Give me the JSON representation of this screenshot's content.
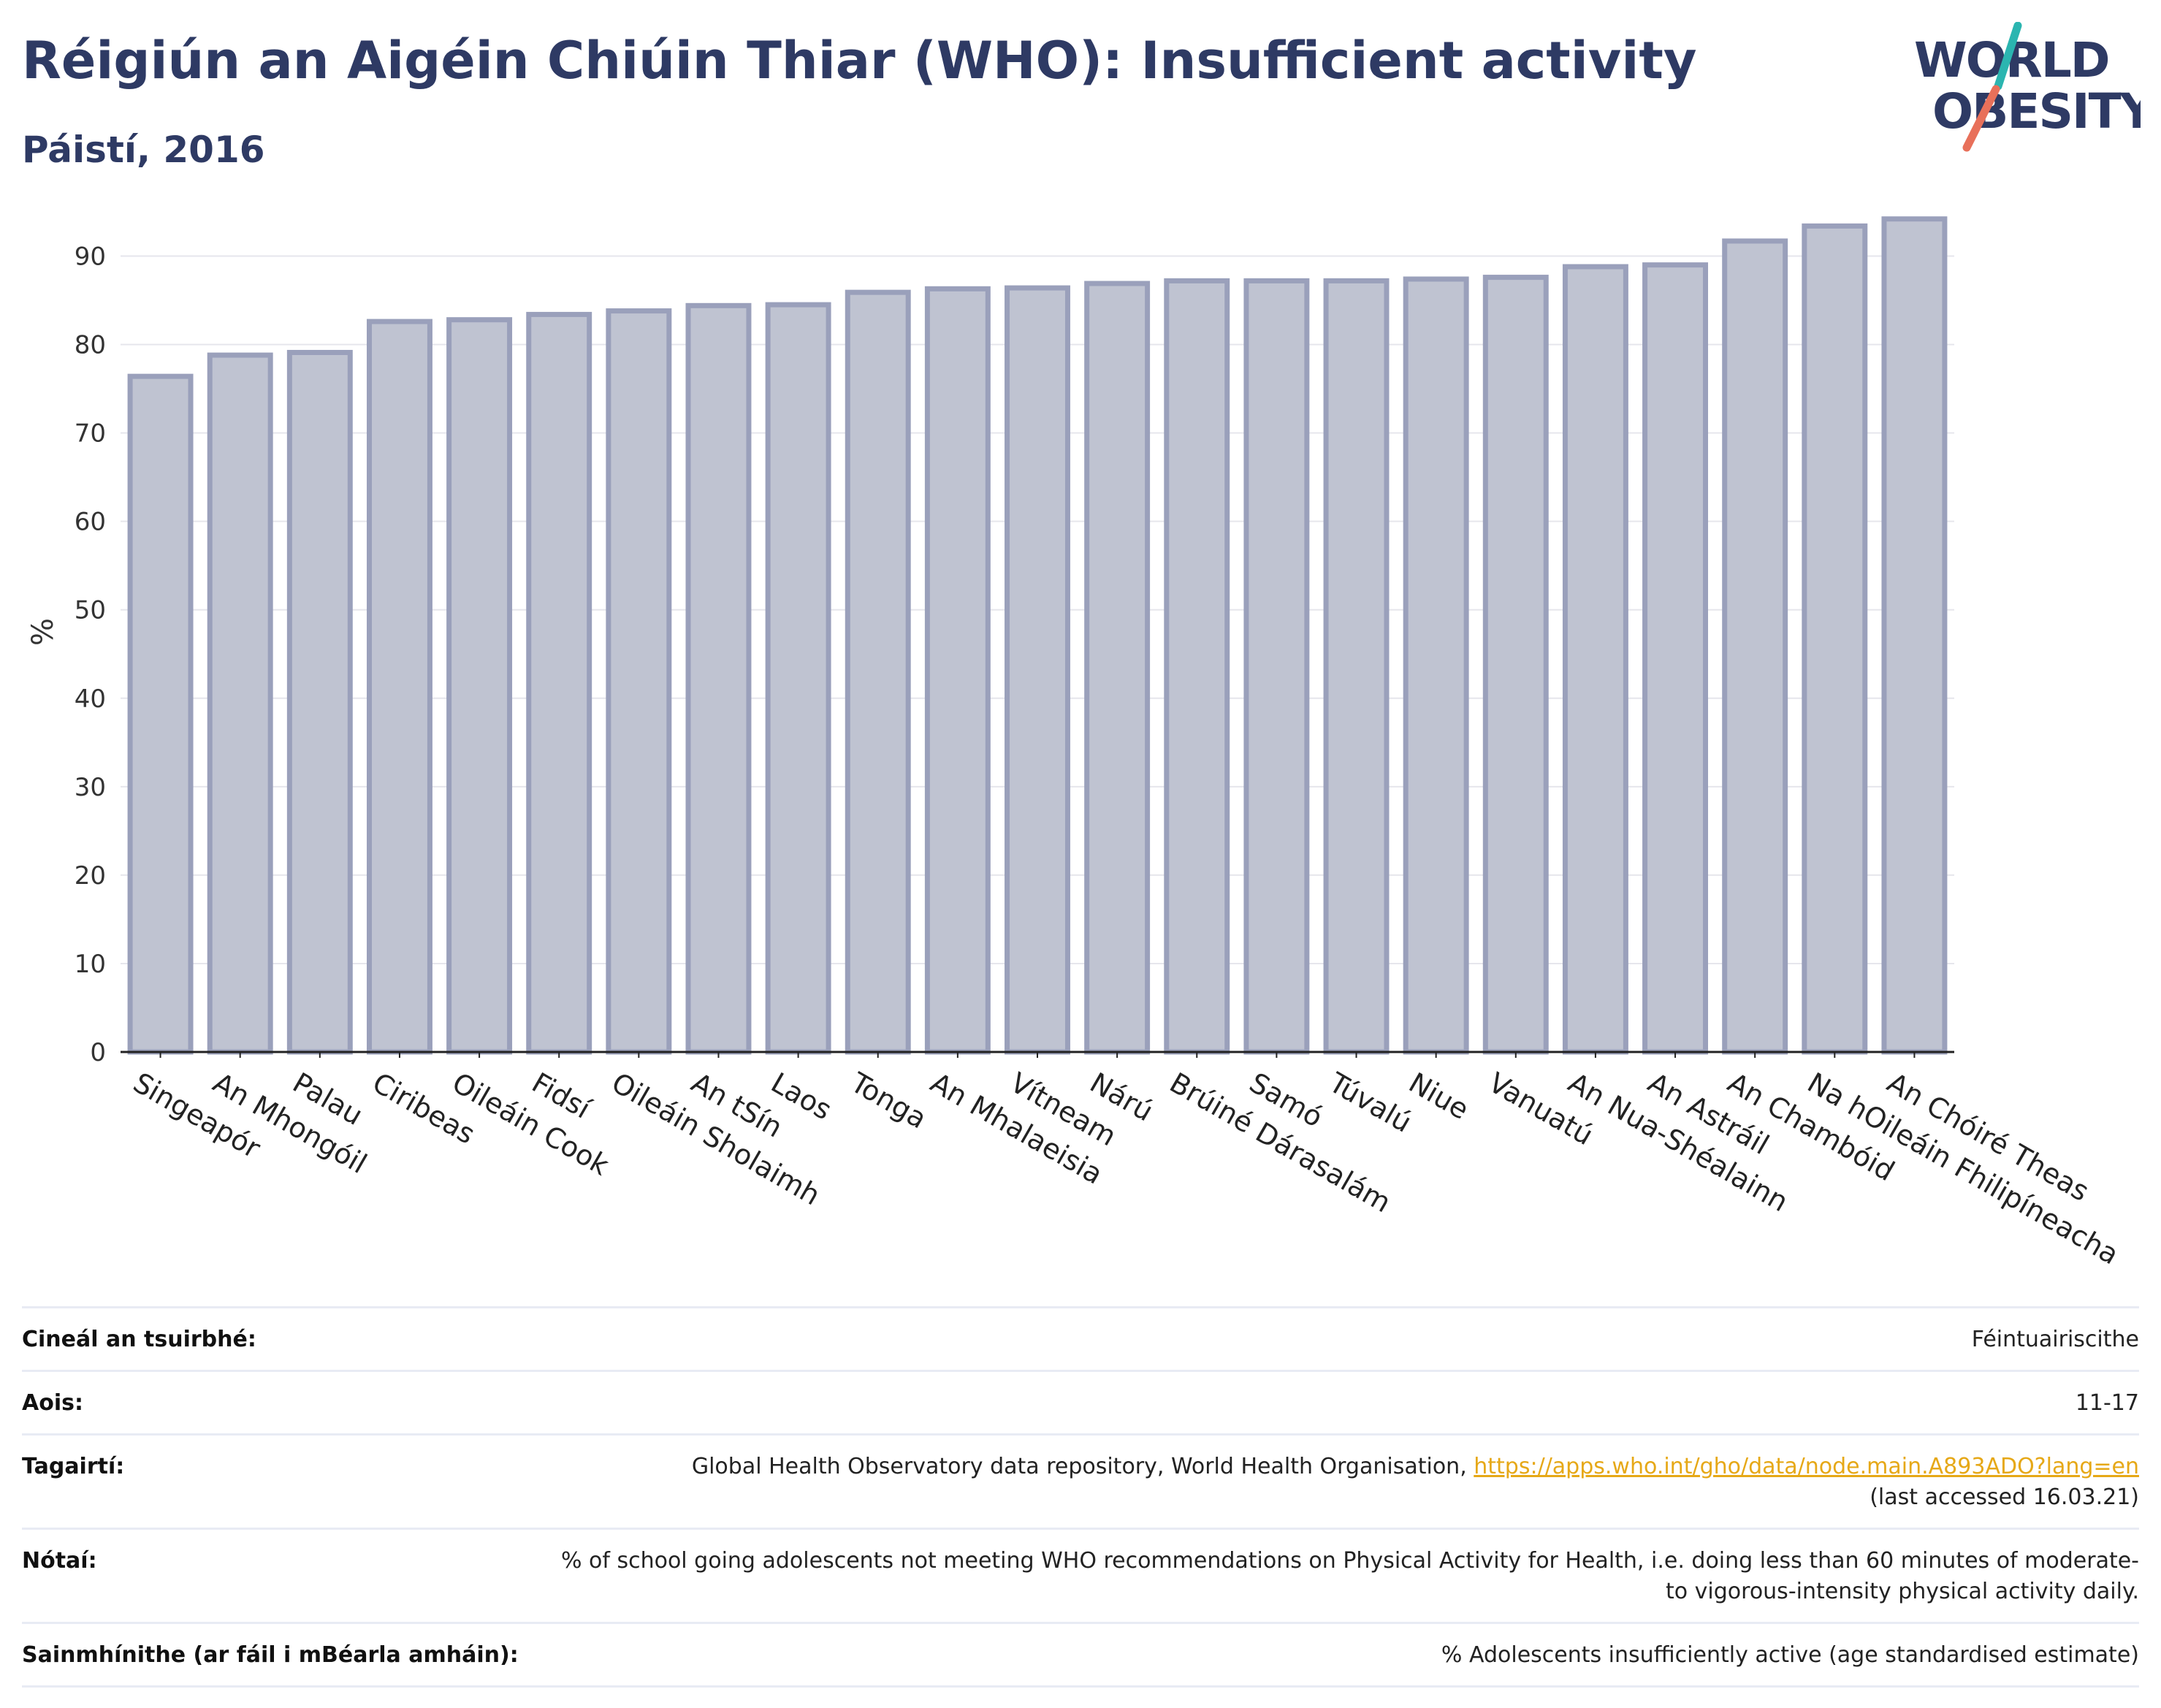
{
  "header": {
    "title": "Réigiún an Aigéin Chiúin Thiar (WHO): Insufficient activity",
    "subtitle": "Páistí, 2016"
  },
  "logo": {
    "line1": "WORLD",
    "line2": "OBESITY",
    "accent_teal": "#2bb5b0",
    "accent_coral": "#e8705a",
    "text_color": "#2e3a64"
  },
  "chart_data": {
    "type": "bar",
    "title": "",
    "xlabel": "",
    "ylabel": "%",
    "ylim": [
      0,
      95
    ],
    "yticks": [
      0,
      10,
      20,
      30,
      40,
      50,
      60,
      70,
      80,
      90
    ],
    "grid": true,
    "bar_fill": "#bfc3d1",
    "bar_stroke": "#9aa0bb",
    "categories": [
      "Singeapór",
      "An Mhongóil",
      "Palau",
      "Ciribeas",
      "Oileáin Cook",
      "Fidsí",
      "Oileáin Sholaimh",
      "An tSín",
      "Laos",
      "Tonga",
      "An Mhalaeisia",
      "Vítneam",
      "Nárú",
      "Brúiné Dárasalám",
      "Samó",
      "Túvalú",
      "Niue",
      "Vanuatú",
      "An Nua-Shéalainn",
      "An Astráil",
      "An Chambóid",
      "Na hOileáin Fhilipíneacha",
      "An Chóiré Theas"
    ],
    "values": [
      76.4,
      78.8,
      79.1,
      82.6,
      82.8,
      83.4,
      83.8,
      84.4,
      84.5,
      85.9,
      86.3,
      86.4,
      86.9,
      87.2,
      87.2,
      87.2,
      87.4,
      87.6,
      88.8,
      89.0,
      91.7,
      93.4,
      94.2
    ]
  },
  "info": [
    {
      "key": "Cineál an tsuirbhé:",
      "value": "Féintuairiscithe"
    },
    {
      "key": "Aois:",
      "value": "11-17"
    },
    {
      "key": "Tagairtí:",
      "value": "Global Health Observatory data repository, World Health Organisation, ",
      "link": "https://apps.who.int/gho/data/node.main.A893ADO?lang=en",
      "value2": "(last accessed 16.03.21)"
    },
    {
      "key": "Nótaí:",
      "value": "% of school going adolescents not meeting WHO recommendations on Physical Activity for Health, i.e. doing less than 60 minutes of moderate- to vigorous-intensity physical activity daily."
    },
    {
      "key": "Sainmhínithe (ar fáil i mBéarla amháin):",
      "value": "% Adolescents insufficiently active (age standardised estimate)"
    }
  ]
}
